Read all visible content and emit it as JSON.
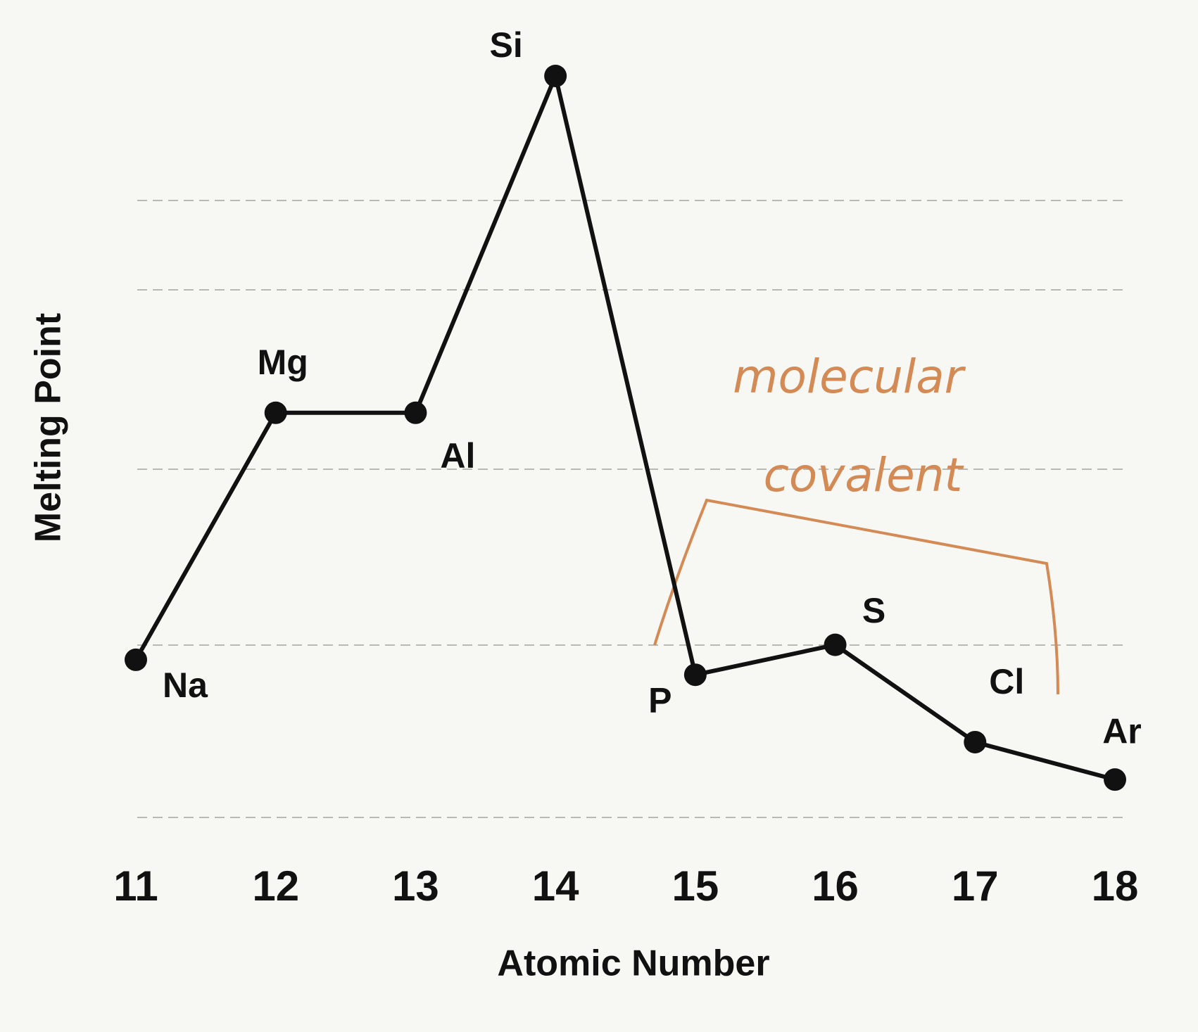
{
  "chart_data": {
    "type": "line",
    "x_label": "Atomic Number",
    "y_label": "Melting Point",
    "x": [
      11,
      12,
      13,
      14,
      15,
      16,
      17,
      18
    ],
    "values": [
      22,
      55,
      55,
      100,
      20,
      24,
      11,
      6
    ],
    "point_labels": [
      "Na",
      "Mg",
      "Al",
      "Si",
      "P",
      "S",
      "Cl",
      "Ar"
    ],
    "color": "#111111",
    "xlim": [
      11,
      18
    ],
    "xticks": [
      11,
      12,
      13,
      14,
      15,
      16,
      17,
      18
    ],
    "ylim": [
      0,
      100
    ],
    "annotation": [
      "molecular",
      "covalent"
    ],
    "annotation_color": "#d38a55"
  }
}
